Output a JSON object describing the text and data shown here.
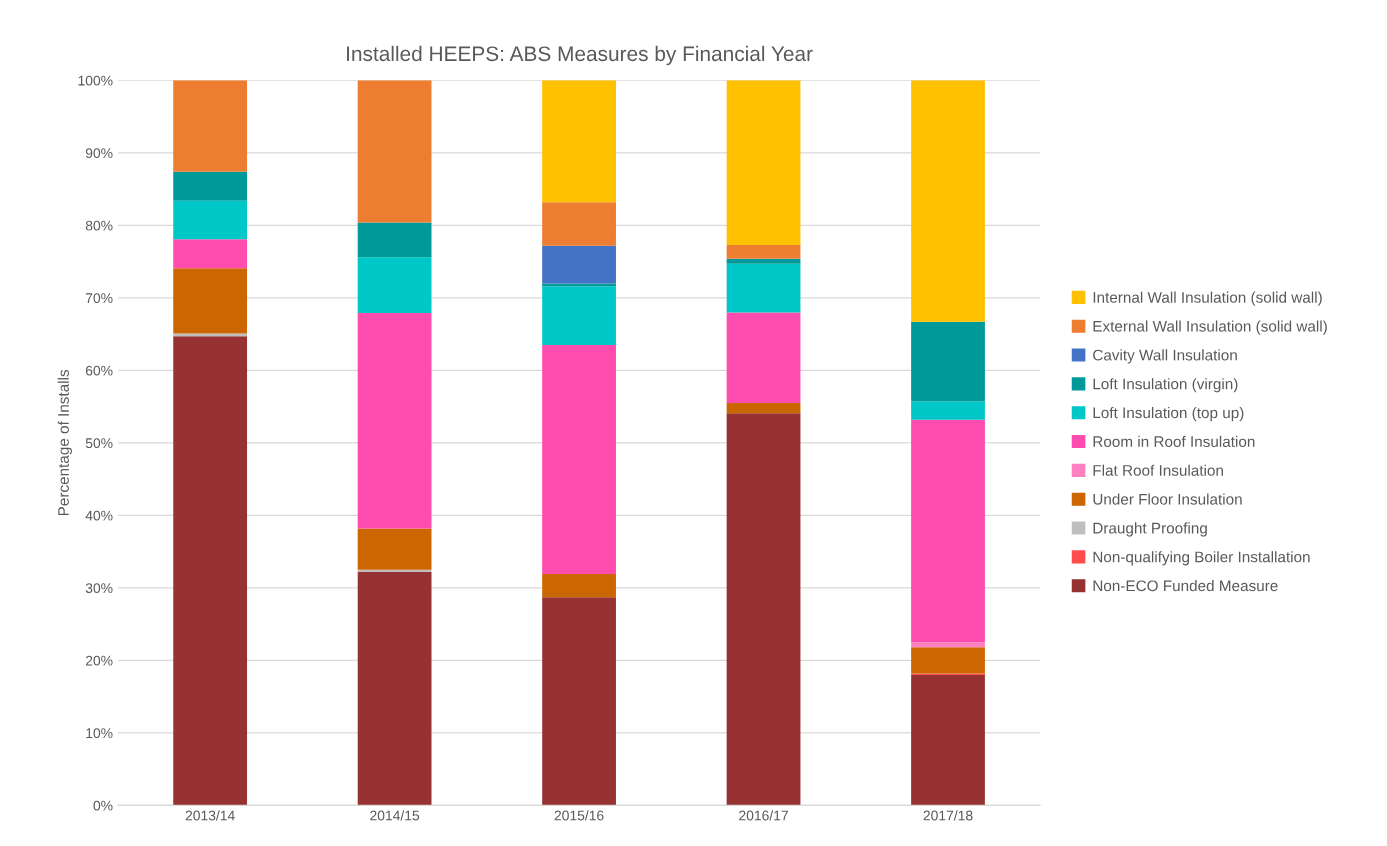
{
  "chart_data": {
    "type": "bar",
    "stacked": true,
    "title": "Installed HEEPS: ABS Measures by Financial Year",
    "ylabel": "Percentage of Installs",
    "categories": [
      "2013/14",
      "2014/15",
      "2015/16",
      "2016/17",
      "2017/18"
    ],
    "ylim": [
      0,
      100
    ],
    "yticks": [
      {
        "value": 0,
        "label": "0%"
      },
      {
        "value": 10,
        "label": "10%"
      },
      {
        "value": 20,
        "label": "20%"
      },
      {
        "value": 30,
        "label": "30%"
      },
      {
        "value": 40,
        "label": "40%"
      },
      {
        "value": 50,
        "label": "50%"
      },
      {
        "value": 60,
        "label": "60%"
      },
      {
        "value": 70,
        "label": "70%"
      },
      {
        "value": 80,
        "label": "80%"
      },
      {
        "value": 90,
        "label": "90%"
      },
      {
        "value": 100,
        "label": "100%"
      }
    ],
    "grid": "y",
    "legend": "right",
    "series": [
      {
        "name": "Non-ECO Funded Measure",
        "color": "#963232",
        "values": [
          64.7,
          32.2,
          28.7,
          54.1,
          18.0
        ]
      },
      {
        "name": "Non-qualifying Boiler Installation",
        "color": "#ff4c4c",
        "values": [
          0,
          0,
          0,
          0,
          0.2
        ]
      },
      {
        "name": "Draught Proofing",
        "color": "#bfbfbf",
        "values": [
          0.4,
          0.3,
          0,
          0,
          0
        ]
      },
      {
        "name": "Under Floor Insulation",
        "color": "#cc6600",
        "values": [
          9.0,
          5.7,
          3.2,
          1.4,
          3.6
        ]
      },
      {
        "name": "Flat Roof Insulation",
        "color": "#ff80c0",
        "values": [
          0,
          0,
          0,
          0,
          0.7
        ]
      },
      {
        "name": "Room in Roof Insulation",
        "color": "#ff4daf",
        "values": [
          4.0,
          29.7,
          31.6,
          12.5,
          30.7
        ]
      },
      {
        "name": "Loft Insulation (top up)",
        "color": "#00c8c8",
        "values": [
          5.3,
          7.7,
          8.1,
          6.7,
          2.5
        ]
      },
      {
        "name": "Loft Insulation (virgin)",
        "color": "#009999",
        "values": [
          4.0,
          4.8,
          0.4,
          0.7,
          11.0
        ]
      },
      {
        "name": "Cavity Wall Insulation",
        "color": "#4472c4",
        "values": [
          0,
          0,
          5.2,
          0,
          0
        ]
      },
      {
        "name": "External Wall Insulation (solid wall)",
        "color": "#ed7d31",
        "values": [
          12.6,
          19.6,
          6.0,
          1.9,
          0
        ]
      },
      {
        "name": "Internal Wall Insulation (solid wall)",
        "color": "#ffc000",
        "values": [
          0,
          0,
          16.8,
          22.7,
          33.3
        ]
      }
    ]
  }
}
